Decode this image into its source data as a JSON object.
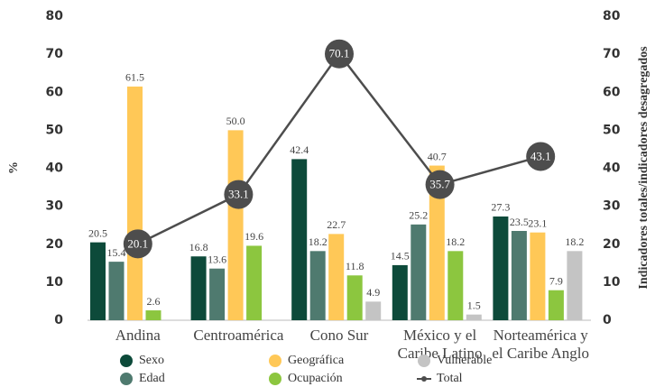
{
  "chart_data": {
    "type": "bar",
    "categories": [
      "Andina",
      "Centroamérica",
      "Cono Sur",
      "México y el\nCaribe Latino",
      "Norteamérica y\nel Caribe Anglo"
    ],
    "ylabel": "%",
    "y2label": "Indicadores totales/indicadores desagregados",
    "ylim": [
      0,
      80
    ],
    "yticks": [
      0,
      10,
      20,
      30,
      40,
      50,
      60,
      70,
      80
    ],
    "y2lim": [
      0,
      80
    ],
    "y2ticks": [
      0,
      10,
      20,
      30,
      40,
      50,
      60,
      70,
      80
    ],
    "series": [
      {
        "name": "Sexo",
        "color": "#0d4a3a",
        "values": [
          20.5,
          16.8,
          42.4,
          14.5,
          27.3
        ]
      },
      {
        "name": "Edad",
        "color": "#4f7a6f",
        "values": [
          15.4,
          13.6,
          18.2,
          25.2,
          23.5
        ]
      },
      {
        "name": "Geográfica",
        "color": "#ffc857",
        "values": [
          61.5,
          50.0,
          22.7,
          40.7,
          23.1
        ],
        "value_labels": [
          "61.5",
          "50.0",
          "22.7",
          "40.7",
          "23.1"
        ]
      },
      {
        "name": "Ocupación",
        "color": "#8cc63f",
        "values": [
          2.6,
          19.6,
          11.8,
          18.2,
          7.9
        ]
      },
      {
        "name": "Vulnerable",
        "color": "#c4c4c4",
        "values": [
          null,
          null,
          4.9,
          1.5,
          18.2
        ]
      },
      {
        "name": "Total",
        "type": "line",
        "axis": "y2",
        "color": "#4d4d4d",
        "values": [
          20.1,
          33.1,
          70.1,
          35.7,
          43.1
        ]
      }
    ]
  }
}
